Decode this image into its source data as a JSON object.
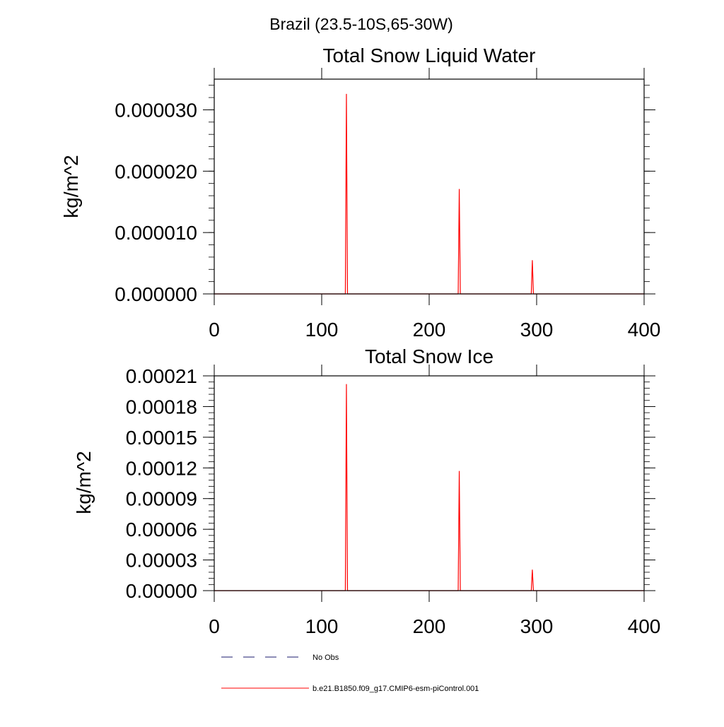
{
  "page": {
    "main_title": "Brazil (23.5-10S,65-30W)"
  },
  "chart_data": [
    {
      "type": "line",
      "title": "Total Snow Liquid Water",
      "xlabel": "",
      "ylabel": "kg/m^2",
      "xlim": [
        0,
        400
      ],
      "ylim": [
        0,
        3.5e-05
      ],
      "x_ticks": [
        0,
        100,
        200,
        300,
        400
      ],
      "x_tick_labels": [
        "0",
        "100",
        "200",
        "300",
        "400"
      ],
      "y_ticks": [
        0,
        1e-05,
        2e-05,
        3e-05
      ],
      "y_tick_labels": [
        "0.000000",
        "0.000010",
        "0.000020",
        "0.000030"
      ],
      "grid": false,
      "legend": "below",
      "series": [
        {
          "name": "b.e21.B1850.f09_g17.CMIP6-esm-piControl.001",
          "color": "#ff0000",
          "x": [
            0,
            122,
            123,
            124,
            227,
            228,
            229,
            295,
            296,
            297,
            400
          ],
          "y": [
            0,
            0,
            3.26e-05,
            0,
            0,
            1.71e-05,
            0,
            0,
            5.5e-06,
            0,
            0
          ]
        }
      ]
    },
    {
      "type": "line",
      "title": "Total Snow Ice",
      "xlabel": "",
      "ylabel": "kg/m^2",
      "xlim": [
        0,
        400
      ],
      "ylim": [
        0,
        0.00021
      ],
      "x_ticks": [
        0,
        100,
        200,
        300,
        400
      ],
      "x_tick_labels": [
        "0",
        "100",
        "200",
        "300",
        "400"
      ],
      "y_ticks": [
        0,
        3e-05,
        6e-05,
        9e-05,
        0.00012,
        0.00015,
        0.00018,
        0.00021
      ],
      "y_tick_labels": [
        "0.00000",
        "0.00003",
        "0.00006",
        "0.00009",
        "0.00012",
        "0.00015",
        "0.00018",
        "0.00021"
      ],
      "grid": false,
      "legend": "below",
      "series": [
        {
          "name": "b.e21.B1850.f09_g17.CMIP6-esm-piControl.001",
          "color": "#ff0000",
          "x": [
            0,
            122,
            123,
            124,
            227,
            228,
            229,
            295,
            296,
            297,
            400
          ],
          "y": [
            0,
            0,
            0.000202,
            0,
            0,
            0.000117,
            0,
            0,
            2.05e-05,
            0,
            0
          ]
        }
      ]
    }
  ],
  "legend": {
    "items": [
      {
        "label": "No Obs",
        "color": "#1a1a6e",
        "style": "dashed"
      },
      {
        "label": "b.e21.B1850.f09_g17.CMIP6-esm-piControl.001",
        "color": "#ff0000",
        "style": "solid"
      }
    ]
  }
}
